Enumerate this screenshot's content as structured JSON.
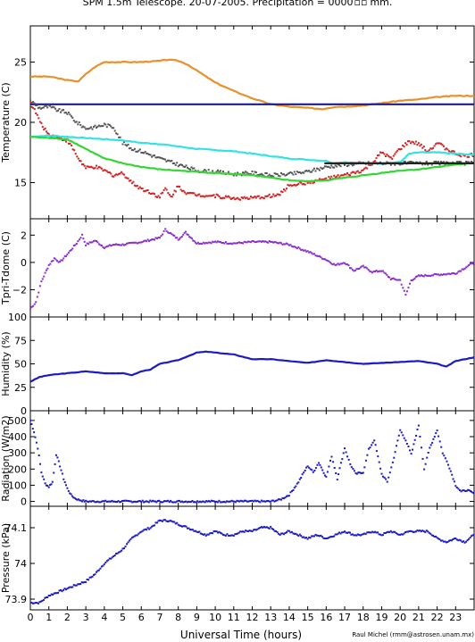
{
  "figure": {
    "title": "SPM 1.5m Telescope. 20-07-2005. Precipitation = 0000",
    "title_unit": "mm.",
    "xlabel": "Universal Time (hours)",
    "credit": "Raul Michel (rmm@astrosen.unam.mx)"
  },
  "colors": {
    "orange": "#e8902a",
    "navy": "#1c1c8c",
    "gray": "#555555",
    "red": "#d42020",
    "cyan": "#33e3e3",
    "green": "#33d633",
    "black": "#222222",
    "purple": "#8a2ed0",
    "blue": "#1a1ac8"
  },
  "chart_data": [
    {
      "type": "line",
      "panel": "temperature",
      "ylabel": "Temperature (C)",
      "ylim": [
        12,
        28
      ],
      "xlim": [
        0,
        24
      ],
      "yticks": [
        15,
        20,
        25
      ],
      "xticks": [
        0,
        1,
        2,
        3,
        4,
        5,
        6,
        7,
        8,
        9,
        10,
        11,
        12,
        13,
        14,
        15,
        16,
        17,
        18,
        19,
        20,
        21,
        22,
        23
      ],
      "series": [
        {
          "color": "orange",
          "style": "line",
          "x": [
            0,
            1,
            2,
            2.6,
            3,
            3.5,
            4,
            5,
            6,
            7,
            7.5,
            8,
            8.5,
            9,
            10,
            11,
            12,
            13,
            14,
            15,
            15.8,
            16.5,
            17,
            18,
            19,
            20,
            21,
            22,
            23,
            24
          ],
          "y": [
            23.8,
            23.8,
            23.5,
            23.4,
            24.0,
            24.6,
            25.0,
            25.0,
            25.0,
            25.1,
            25.2,
            25.1,
            24.8,
            24.3,
            23.3,
            22.6,
            22.0,
            21.5,
            21.3,
            21.2,
            21.1,
            21.3,
            21.3,
            21.4,
            21.6,
            21.8,
            21.9,
            22.1,
            22.2,
            22.2
          ]
        },
        {
          "color": "navy",
          "style": "line",
          "x": [
            0,
            24
          ],
          "y": [
            21.5,
            21.5
          ]
        },
        {
          "color": "gray",
          "style": "points",
          "x": [
            0,
            0.5,
            1,
            1.5,
            2,
            2.5,
            3,
            3.5,
            4,
            4.5,
            5,
            5.5,
            6,
            7,
            8,
            9,
            10,
            11,
            12,
            13,
            14,
            15,
            16,
            17,
            18,
            19,
            20,
            21,
            22,
            23,
            24
          ],
          "y": [
            21.8,
            21.2,
            21.3,
            21.0,
            20.8,
            20.0,
            19.5,
            19.6,
            19.8,
            19.6,
            18.3,
            17.8,
            17.6,
            17.0,
            16.5,
            16.0,
            15.9,
            15.7,
            15.8,
            15.6,
            15.7,
            15.9,
            16.3,
            16.5,
            16.6,
            16.6,
            16.6,
            16.6,
            16.6,
            16.6,
            16.6
          ]
        },
        {
          "color": "red",
          "style": "points",
          "x": [
            0,
            0.3,
            0.6,
            1,
            1.3,
            1.6,
            2,
            2.3,
            2.6,
            3,
            3.5,
            4,
            4.5,
            5,
            5.5,
            6,
            6.5,
            7,
            7.3,
            7.6,
            8,
            8.5,
            9,
            10,
            11,
            12,
            13,
            13.5,
            14,
            15,
            16,
            17,
            18,
            18.5,
            19,
            19.5,
            20,
            20.5,
            21,
            21.5,
            22,
            22.5,
            23,
            23.5,
            24
          ],
          "y": [
            21.6,
            20.8,
            19.8,
            19.0,
            18.8,
            18.7,
            18.5,
            17.8,
            17.0,
            16.2,
            16.3,
            16.0,
            15.6,
            15.8,
            15.0,
            14.5,
            14.2,
            13.8,
            14.5,
            13.8,
            14.7,
            14.1,
            14.0,
            13.9,
            13.7,
            13.7,
            13.9,
            14.0,
            14.8,
            15.0,
            15.3,
            15.6,
            16.0,
            16.6,
            17.5,
            17.0,
            17.8,
            18.4,
            18.2,
            17.6,
            18.3,
            17.8,
            17.4,
            17.2,
            17.3
          ]
        },
        {
          "color": "cyan",
          "style": "line",
          "x": [
            0,
            1,
            2,
            3,
            4,
            5,
            6,
            7,
            8,
            9,
            10,
            11,
            12,
            13,
            14,
            15,
            16,
            16.4,
            17,
            18,
            19,
            20,
            20.5,
            21,
            22,
            23,
            24
          ],
          "y": [
            18.8,
            18.9,
            18.8,
            18.7,
            18.6,
            18.5,
            18.3,
            18.2,
            18.0,
            17.8,
            17.7,
            17.6,
            17.4,
            17.2,
            17.0,
            16.9,
            16.8,
            16.6,
            16.7,
            16.6,
            16.6,
            16.7,
            17.4,
            17.5,
            17.5,
            17.4,
            17.3
          ]
        },
        {
          "color": "green",
          "style": "line",
          "x": [
            0,
            1,
            2,
            3,
            4,
            5,
            6,
            7,
            8,
            9,
            10,
            11,
            12,
            13,
            14,
            15,
            16,
            17,
            18,
            19,
            20,
            21,
            22,
            23,
            24
          ],
          "y": [
            18.8,
            18.7,
            18.6,
            17.8,
            17.0,
            16.6,
            16.3,
            16.1,
            16.0,
            15.9,
            15.8,
            15.7,
            15.6,
            15.4,
            15.2,
            15.1,
            15.2,
            15.4,
            15.6,
            15.8,
            16.0,
            16.1,
            16.3,
            16.5,
            16.6
          ]
        },
        {
          "color": "black",
          "style": "line",
          "x": [
            15.9,
            24
          ],
          "y": [
            16.6,
            16.6
          ]
        }
      ]
    },
    {
      "type": "scatter",
      "panel": "tdiff",
      "ylabel": "Tpri-Tdome (C)",
      "ylim": [
        -4,
        3.2
      ],
      "xlim": [
        0,
        24
      ],
      "yticks": [
        -2,
        0,
        2
      ],
      "yticklabels": [
        "−2",
        "0",
        "2"
      ],
      "series": [
        {
          "color": "purple",
          "x": [
            0,
            0.3,
            0.6,
            1,
            1.3,
            1.6,
            2,
            2.5,
            2.8,
            3,
            3.5,
            4,
            4.5,
            5,
            6,
            7,
            7.3,
            8,
            8.4,
            9,
            10,
            11,
            12,
            13,
            14,
            15,
            16,
            16.5,
            17,
            17.5,
            18,
            18.5,
            19,
            19.5,
            20,
            20.3,
            20.6,
            21,
            22,
            23,
            23.5,
            24
          ],
          "y": [
            -3.4,
            -2.9,
            -1.4,
            -0.2,
            0.3,
            0.0,
            0.6,
            1.4,
            2.0,
            1.3,
            1.6,
            1.1,
            1.3,
            1.3,
            1.5,
            1.8,
            2.4,
            1.7,
            2.2,
            1.4,
            1.5,
            1.4,
            1.5,
            1.5,
            1.3,
            0.8,
            0.2,
            -0.2,
            0.0,
            -0.6,
            -0.3,
            -0.7,
            -0.6,
            -1.2,
            -1.3,
            -2.4,
            -1.3,
            -1.0,
            -0.9,
            -0.8,
            -0.4,
            0.0
          ]
        }
      ]
    },
    {
      "type": "line",
      "panel": "humidity",
      "ylabel": "Humidity (%)",
      "ylim": [
        0,
        100
      ],
      "xlim": [
        0,
        24
      ],
      "yticks": [
        0,
        25,
        50,
        75,
        100
      ],
      "series": [
        {
          "color": "blue",
          "x": [
            0,
            0.5,
            1,
            2,
            3,
            4,
            5,
            5.5,
            6,
            6.5,
            7,
            8,
            9,
            9.5,
            10,
            11,
            12,
            13,
            14,
            15,
            16,
            17,
            18,
            19,
            20,
            21,
            22,
            22.5,
            23,
            24
          ],
          "y": [
            31,
            36,
            38,
            40,
            42,
            40,
            40,
            38,
            42,
            44,
            50,
            54,
            62,
            63,
            62,
            60,
            55,
            55,
            53,
            51,
            54,
            52,
            50,
            51,
            52,
            53,
            50,
            47,
            53,
            57
          ]
        }
      ]
    },
    {
      "type": "scatter",
      "panel": "radiation",
      "ylabel": "Radiation (W/m2)",
      "ylim": [
        -30,
        560
      ],
      "xlim": [
        0,
        24
      ],
      "yticks": [
        0,
        100,
        200,
        300,
        400,
        500
      ],
      "series": [
        {
          "color": "blue",
          "x": [
            0,
            0.2,
            0.4,
            0.6,
            0.8,
            1,
            1.2,
            1.4,
            1.6,
            1.8,
            2,
            2.2,
            2.4,
            2.6,
            3,
            4,
            6,
            8,
            10,
            12,
            13,
            13.5,
            14,
            14.5,
            15,
            15.3,
            15.6,
            16,
            16.3,
            16.6,
            17,
            17.3,
            17.6,
            18,
            18.3,
            18.6,
            19,
            19.3,
            19.6,
            20,
            20.3,
            20.6,
            21,
            21.3,
            21.6,
            22,
            22.3,
            22.6,
            23,
            23.3,
            23.6,
            24
          ],
          "y": [
            500,
            430,
            330,
            180,
            110,
            90,
            120,
            290,
            220,
            140,
            80,
            40,
            20,
            10,
            0,
            0,
            0,
            0,
            0,
            0,
            0,
            10,
            40,
            120,
            220,
            180,
            240,
            150,
            280,
            140,
            330,
            230,
            170,
            180,
            320,
            380,
            170,
            120,
            240,
            440,
            380,
            290,
            470,
            200,
            330,
            440,
            300,
            230,
            100,
            60,
            70,
            50
          ]
        }
      ]
    },
    {
      "type": "scatter",
      "panel": "pressure",
      "ylabel": "Pressure (kPa)",
      "ylim": [
        73.87,
        74.16
      ],
      "xlim": [
        0,
        24
      ],
      "yticks": [
        73.9,
        74,
        74.1
      ],
      "yticklabels": [
        "73.9",
        "74",
        "74.1"
      ],
      "series": [
        {
          "color": "blue",
          "x": [
            0,
            0.5,
            1,
            1.5,
            2,
            2.5,
            3,
            3.5,
            4,
            4.5,
            5,
            5.5,
            6,
            6.5,
            7,
            7.5,
            8,
            8.5,
            9,
            9.5,
            10,
            10.5,
            11,
            11.5,
            12,
            12.5,
            13,
            13.5,
            14,
            14.5,
            15,
            15.5,
            16,
            16.5,
            17,
            17.5,
            18,
            18.5,
            19,
            19.5,
            20,
            20.5,
            21,
            21.5,
            22,
            22.5,
            23,
            23.5,
            24
          ],
          "y": [
            73.89,
            73.89,
            73.91,
            73.92,
            73.93,
            73.94,
            73.95,
            73.97,
            74.0,
            74.02,
            74.04,
            74.07,
            74.09,
            74.1,
            74.12,
            74.12,
            74.11,
            74.1,
            74.09,
            74.08,
            74.09,
            74.08,
            74.08,
            74.09,
            74.09,
            74.1,
            74.1,
            74.08,
            74.09,
            74.08,
            74.07,
            74.08,
            74.07,
            74.08,
            74.09,
            74.08,
            74.08,
            74.09,
            74.08,
            74.09,
            74.08,
            74.09,
            74.09,
            74.09,
            74.07,
            74.06,
            74.07,
            74.06,
            74.08
          ]
        }
      ]
    }
  ]
}
